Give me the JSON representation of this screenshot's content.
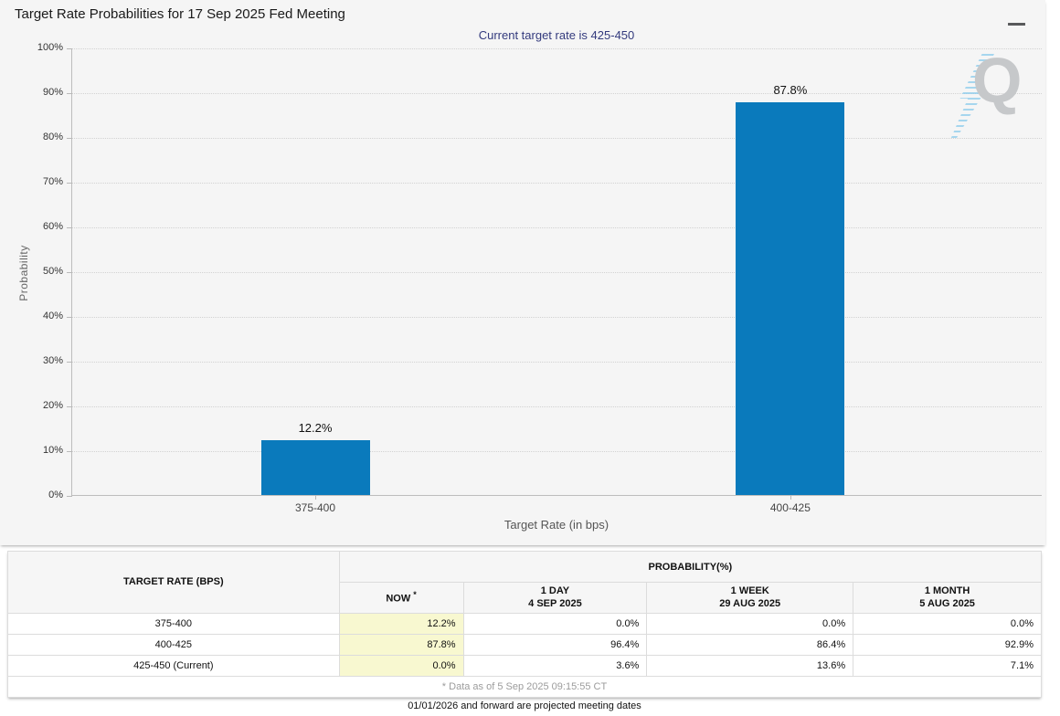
{
  "page": {
    "title": "Target Rate Probabilities for 17 Sep 2025 Fed Meeting"
  },
  "chart": {
    "subtitle": "Current target rate is 425-450",
    "subtitle_color": "#333a7d",
    "bar_color": "#0a7abc",
    "watermark_letter": "Q"
  },
  "chart_data": {
    "type": "bar",
    "title": "Target Rate Probabilities for 17 Sep 2025 Fed Meeting",
    "categories": [
      "375-400",
      "400-425"
    ],
    "values": [
      12.2,
      87.8
    ],
    "bar_value_labels": [
      "12.2%",
      "87.8%"
    ],
    "xlabel": "Target Rate (in bps)",
    "ylabel": "Probability",
    "ylim": [
      0,
      100
    ],
    "ytick_step": 10,
    "ytick_labels": [
      "0%",
      "10%",
      "20%",
      "30%",
      "40%",
      "50%",
      "60%",
      "70%",
      "80%",
      "90%",
      "100%"
    ],
    "grid": "horizontal-dotted",
    "legend": "none"
  },
  "table": {
    "header": {
      "target_rate": "TARGET RATE (BPS)",
      "probability": "PROBABILITY(%)"
    },
    "subheaders": [
      {
        "line1": "NOW",
        "sup": "*"
      },
      {
        "line1": "1 DAY",
        "line2": "4 SEP 2025"
      },
      {
        "line1": "1 WEEK",
        "line2": "29 AUG 2025"
      },
      {
        "line1": "1 MONTH",
        "line2": "5 AUG 2025"
      }
    ],
    "now_column_bg": "#f8f8d0",
    "rows": [
      [
        "375-400",
        "12.2%",
        "0.0%",
        "0.0%",
        "0.0%"
      ],
      [
        "400-425",
        "87.8%",
        "96.4%",
        "86.4%",
        "92.9%"
      ],
      [
        "425-450 (Current)",
        "0.0%",
        "3.6%",
        "13.6%",
        "7.1%"
      ]
    ],
    "footnote": "* Data as of 5 Sep 2025 09:15:55 CT"
  },
  "footer": {
    "note": "01/01/2026 and forward are projected meeting dates"
  }
}
